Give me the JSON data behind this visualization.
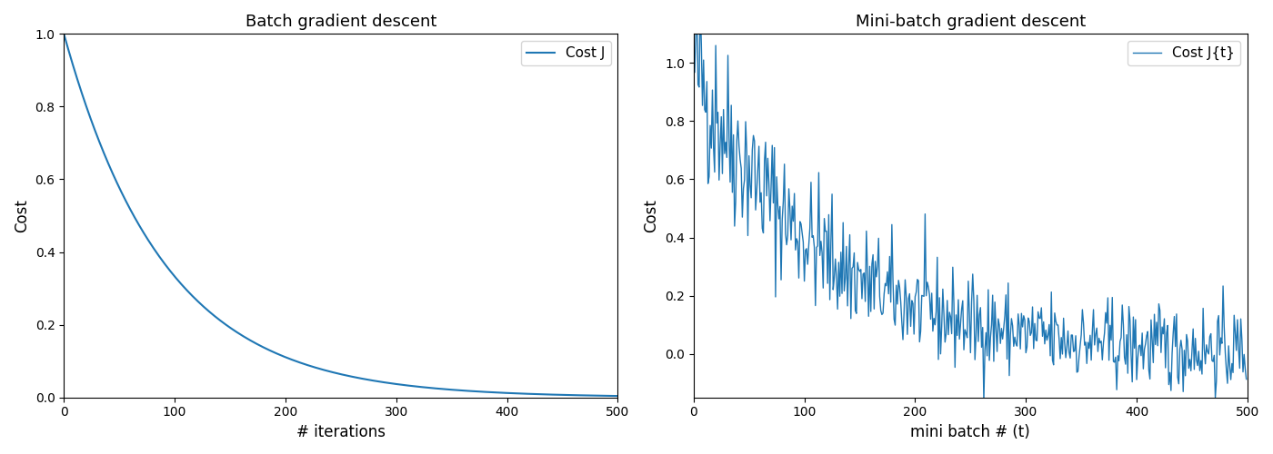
{
  "left_title": "Batch gradient descent",
  "right_title": "Mini-batch gradient descent",
  "left_xlabel": "# iterations",
  "right_xlabel": "mini batch # (t)",
  "ylabel": "Cost",
  "left_legend": "Cost J",
  "right_legend": "Cost J{t}",
  "line_color": "#1f77b4",
  "n_points": 500,
  "batch_decay": 5.5,
  "minibatch_base_decay": 4.5,
  "minibatch_noise_fixed": 0.07,
  "minibatch_noise_prop": 0.1,
  "minibatch_seed": 42,
  "left_ylim": [
    0.0,
    1.0
  ],
  "right_ylim": [
    -0.15,
    1.1
  ],
  "left_xlim": [
    0,
    500
  ],
  "right_xlim": [
    0,
    500
  ],
  "figsize": [
    14.0,
    5.0
  ],
  "dpi": 100
}
